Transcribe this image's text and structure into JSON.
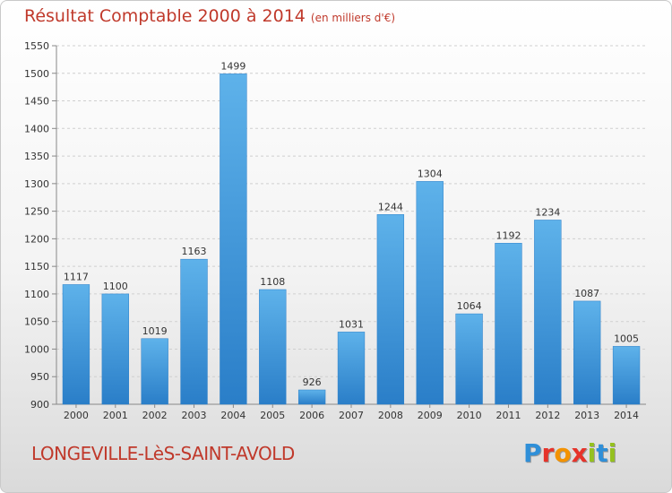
{
  "chart_data": {
    "type": "bar",
    "title": "Résultat Comptable 2000 à 2014",
    "subtitle": "(en milliers d'€)",
    "categories": [
      "2000",
      "2001",
      "2002",
      "2003",
      "2004",
      "2005",
      "2006",
      "2007",
      "2008",
      "2009",
      "2010",
      "2011",
      "2012",
      "2013",
      "2014"
    ],
    "values": [
      1117,
      1100,
      1019,
      1163,
      1499,
      1108,
      926,
      1031,
      1244,
      1304,
      1064,
      1192,
      1234,
      1087,
      1005
    ],
    "ylim": [
      900,
      1550
    ],
    "yticks": [
      900,
      950,
      1000,
      1050,
      1100,
      1150,
      1200,
      1250,
      1300,
      1350,
      1400,
      1450,
      1500,
      1550
    ],
    "grid": true,
    "bar_color": "#3c96dc"
  },
  "footer": {
    "place": "LONGEVILLE-LèS-SAINT-AVOLD",
    "logo_letters": [
      {
        "ch": "P",
        "color": "#2f8fd8"
      },
      {
        "ch": "r",
        "color": "#e6332a"
      },
      {
        "ch": "o",
        "color": "#f39200"
      },
      {
        "ch": "x",
        "color": "#e6332a"
      },
      {
        "ch": "i",
        "color": "#95c11f"
      },
      {
        "ch": "t",
        "color": "#2f8fd8"
      },
      {
        "ch": "i",
        "color": "#95c11f"
      }
    ]
  }
}
